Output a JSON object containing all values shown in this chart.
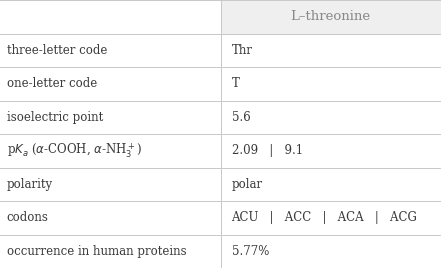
{
  "title": "L–threonine",
  "rows": [
    [
      "three-letter code",
      "Thr"
    ],
    [
      "one-letter code",
      "T"
    ],
    [
      "isoelectric point",
      "5.6"
    ],
    [
      "pKa_row",
      "2.09   |   9.1"
    ],
    [
      "polarity",
      "polar"
    ],
    [
      "codons",
      "ACU   |   ACC   |   ACA   |   ACG"
    ],
    [
      "occurrence in human proteins",
      "5.77%"
    ]
  ],
  "col_split": 0.5,
  "bg_color": "#ffffff",
  "header_bg": "#efefef",
  "grid_color": "#c8c8c8",
  "text_color": "#3a3a3a",
  "header_text_color": "#888888",
  "font_size": 8.5,
  "header_font_size": 9.5
}
